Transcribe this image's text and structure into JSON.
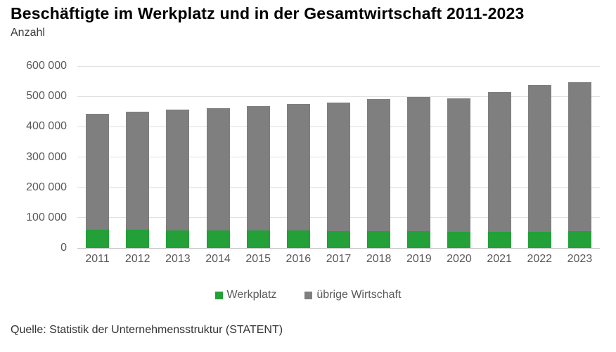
{
  "title": "Beschäftigte im Werkplatz und in der Gesamtwirtschaft 2011-2023",
  "subtitle": "Anzahl",
  "source": "Quelle: Statistik der Unternehmensstruktur (STATENT)",
  "colors": {
    "werkplatz_green": "#23A038",
    "uebrige_gray": "#7F7F7F",
    "grid": "#e0e0e0",
    "axis_text": "#595959"
  },
  "legend": [
    {
      "label": "Werkplatz",
      "color": "#23A038"
    },
    {
      "label": "übrige Wirtschaft",
      "color": "#7F7F7F"
    }
  ],
  "chart_data": {
    "type": "bar",
    "stacked": true,
    "title": "Beschäftigte im Werkplatz und in der Gesamtwirtschaft 2011-2023",
    "ylabel": "Anzahl",
    "categories": [
      "2011",
      "2012",
      "2013",
      "2014",
      "2015",
      "2016",
      "2017",
      "2018",
      "2019",
      "2020",
      "2021",
      "2022",
      "2023"
    ],
    "series": [
      {
        "name": "Werkplatz",
        "color": "#23A038",
        "values": [
          60000,
          60000,
          59000,
          58000,
          58000,
          57000,
          56000,
          56000,
          55000,
          53000,
          53000,
          54000,
          55000
        ]
      },
      {
        "name": "übrige Wirtschaft",
        "color": "#7F7F7F",
        "values": [
          383000,
          389000,
          397000,
          404000,
          411000,
          417000,
          424000,
          436000,
          444000,
          441000,
          462000,
          483000,
          492000
        ]
      }
    ],
    "totals": [
      443000,
      449000,
      456000,
      462000,
      469000,
      474000,
      480000,
      492000,
      499000,
      494000,
      515000,
      537000,
      547000
    ],
    "ylim": [
      0,
      600000
    ],
    "ytick_step": 100000,
    "ytick_labels": [
      "0",
      "100 000",
      "200 000",
      "300 000",
      "400 000",
      "500 000",
      "600 000"
    ],
    "grid": true,
    "legend_position": "bottom-center"
  }
}
